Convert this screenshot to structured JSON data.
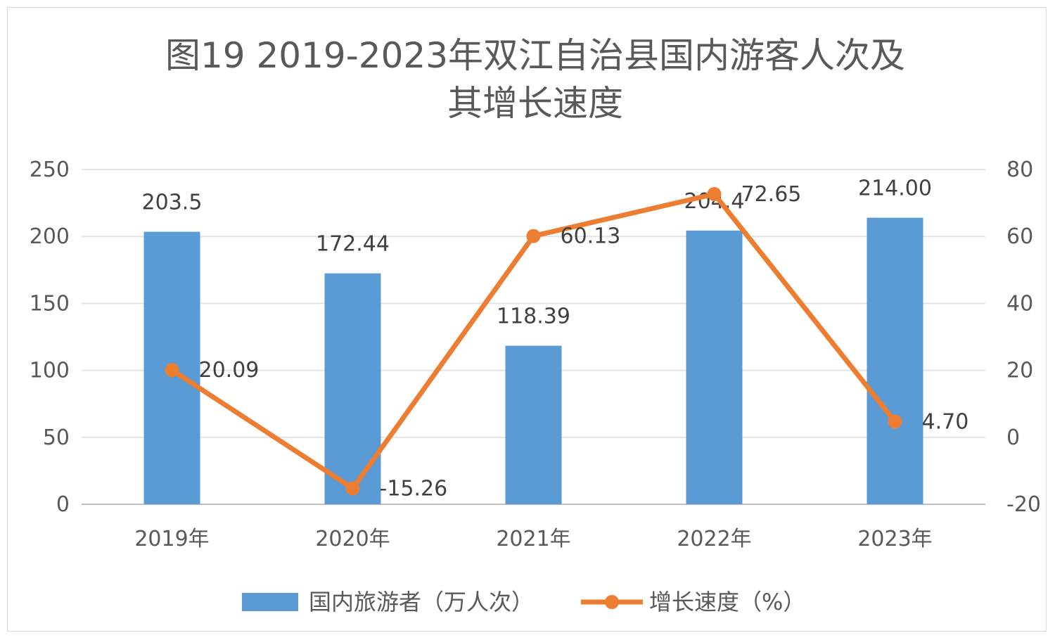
{
  "chart_data": {
    "type": "bar",
    "title_lines": [
      "图19 2019-2023年双江自治县国内游客人次及",
      "其增长速度"
    ],
    "categories": [
      "2019年",
      "2020年",
      "2021年",
      "2022年",
      "2023年"
    ],
    "series": [
      {
        "name": "国内旅游者（万人次）",
        "type": "bar",
        "axis": "left",
        "color": "#5b9bd5",
        "values": [
          203.5,
          172.44,
          118.39,
          204.4,
          214.0
        ],
        "labels": [
          "203.5",
          "172.44",
          "118.39",
          "204.4",
          "214.00"
        ]
      },
      {
        "name": "增长速度（%）",
        "type": "line",
        "axis": "right",
        "color": "#ed7d31",
        "values": [
          20.09,
          -15.26,
          60.13,
          72.65,
          4.7
        ],
        "labels": [
          "20.09",
          "-15.26",
          "60.13",
          "72.65",
          "4.70"
        ]
      }
    ],
    "y_left": {
      "min": 0,
      "max": 250,
      "ticks": [
        0,
        50,
        100,
        150,
        200,
        250
      ]
    },
    "y_right": {
      "min": -20,
      "max": 80,
      "ticks": [
        -20,
        0,
        20,
        40,
        60,
        80
      ]
    },
    "grid": true,
    "legend_position": "bottom"
  }
}
